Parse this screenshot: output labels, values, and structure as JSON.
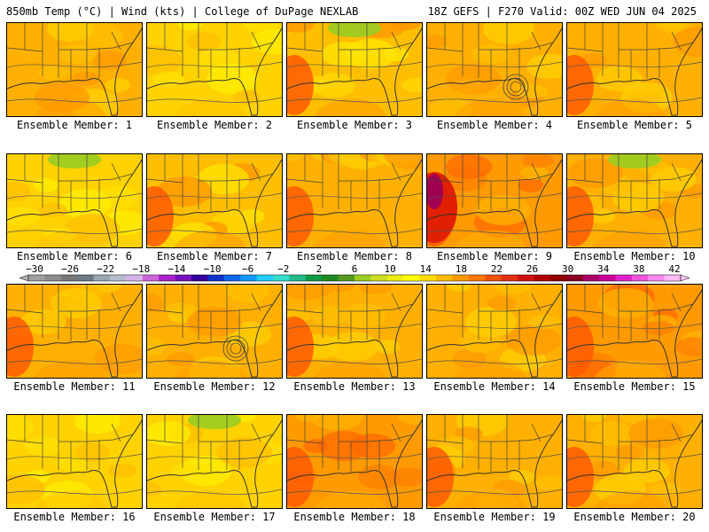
{
  "header": {
    "left": "850mb Temp (°C) | Wind (kts) | College of DuPage NEXLAB",
    "right": "18Z GEFS | F270 Valid: 00Z WED JUN 04 2025"
  },
  "panels": [
    {
      "label": "Ensemble Member: 1",
      "scheme": "orange",
      "green": 0,
      "red": 0,
      "purple": 0,
      "circle": 0
    },
    {
      "label": "Ensemble Member: 2",
      "scheme": "yellow",
      "green": 0,
      "red": 0,
      "purple": 0,
      "circle": 0
    },
    {
      "label": "Ensemble Member: 3",
      "scheme": "mixed",
      "green": 1,
      "red": 1,
      "purple": 0,
      "circle": 0
    },
    {
      "label": "Ensemble Member: 4",
      "scheme": "orange",
      "green": 0,
      "red": 0,
      "purple": 0,
      "circle": 1
    },
    {
      "label": "Ensemble Member: 5",
      "scheme": "orange",
      "green": 0,
      "red": 1,
      "purple": 0,
      "circle": 0
    },
    {
      "label": "Ensemble Member: 6",
      "scheme": "yellow",
      "green": 1,
      "red": 0,
      "purple": 0,
      "circle": 0
    },
    {
      "label": "Ensemble Member: 7",
      "scheme": "mixed",
      "green": 0,
      "red": 1,
      "purple": 0,
      "circle": 0
    },
    {
      "label": "Ensemble Member: 8",
      "scheme": "orange",
      "green": 0,
      "red": 1,
      "purple": 0,
      "circle": 0
    },
    {
      "label": "Ensemble Member: 9",
      "scheme": "hot",
      "green": 0,
      "red": 1,
      "purple": 1,
      "circle": 0
    },
    {
      "label": "Ensemble Member: 10",
      "scheme": "orange",
      "green": 1,
      "red": 1,
      "purple": 0,
      "circle": 0
    },
    {
      "label": "Ensemble Member: 11",
      "scheme": "orange",
      "green": 0,
      "red": 1,
      "purple": 0,
      "circle": 0
    },
    {
      "label": "Ensemble Member: 12",
      "scheme": "orange",
      "green": 0,
      "red": 0,
      "purple": 0,
      "circle": 1
    },
    {
      "label": "Ensemble Member: 13",
      "scheme": "orange",
      "green": 0,
      "red": 1,
      "purple": 0,
      "circle": 0
    },
    {
      "label": "Ensemble Member: 14",
      "scheme": "orange",
      "green": 0,
      "red": 0,
      "purple": 0,
      "circle": 0
    },
    {
      "label": "Ensemble Member: 15",
      "scheme": "hot",
      "green": 0,
      "red": 1,
      "purple": 0,
      "circle": 0
    },
    {
      "label": "Ensemble Member: 16",
      "scheme": "yellow",
      "green": 0,
      "red": 0,
      "purple": 0,
      "circle": 0
    },
    {
      "label": "Ensemble Member: 17",
      "scheme": "yellow",
      "green": 1,
      "red": 0,
      "purple": 0,
      "circle": 0
    },
    {
      "label": "Ensemble Member: 18",
      "scheme": "hot",
      "green": 0,
      "red": 1,
      "purple": 0,
      "circle": 0
    },
    {
      "label": "Ensemble Member: 19",
      "scheme": "orange",
      "green": 0,
      "red": 1,
      "purple": 0,
      "circle": 0
    },
    {
      "label": "Ensemble Member: 20",
      "scheme": "orange",
      "green": 0,
      "red": 1,
      "purple": 0,
      "circle": 0
    }
  ],
  "colorbar": {
    "ticks": [
      "−30",
      "−26",
      "−22",
      "−18",
      "−14",
      "−10",
      "−6",
      "−2",
      "2",
      "6",
      "10",
      "14",
      "18",
      "22",
      "26",
      "30",
      "34",
      "38",
      "42"
    ],
    "colors": [
      "#a0a0a0",
      "#8c8c8c",
      "#787878",
      "#6e7a86",
      "#9aa6b2",
      "#b4bccb",
      "#d4b4e8",
      "#cc66dd",
      "#aa22cc",
      "#7711bb",
      "#330099",
      "#1133cc",
      "#1166ee",
      "#1199ff",
      "#22ccff",
      "#33ddcc",
      "#22bb88",
      "#119944",
      "#228822",
      "#559922",
      "#99cc22",
      "#ccdd22",
      "#eeee11",
      "#ffff00",
      "#ffdd00",
      "#ffbb00",
      "#ff9900",
      "#ff7700",
      "#f05010",
      "#e03010",
      "#d01010",
      "#b00000",
      "#900000",
      "#880022",
      "#aa0066",
      "#cc0099",
      "#dd22cc",
      "#ee55dd",
      "#ff88ee",
      "#ffbbf5"
    ]
  }
}
